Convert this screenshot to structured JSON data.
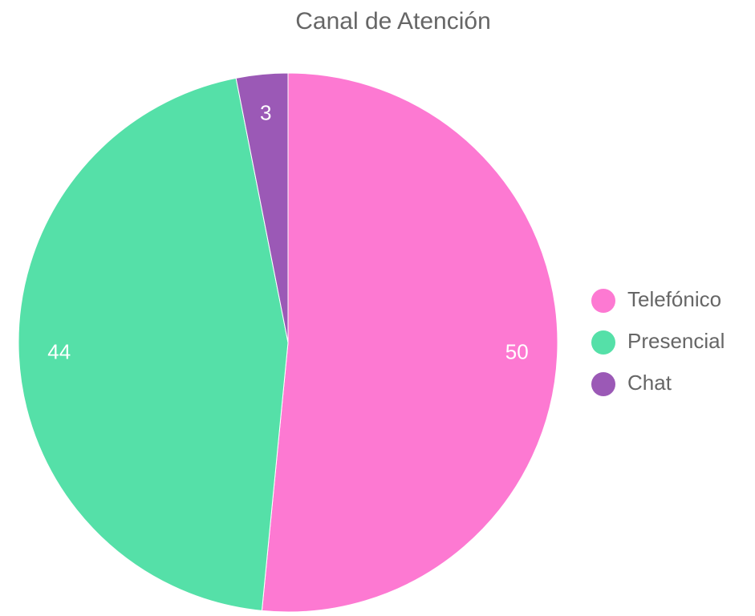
{
  "chart_data": {
    "type": "pie",
    "title": "Canal de Atención",
    "categories": [
      "Telefónico",
      "Presencial",
      "Chat"
    ],
    "values": [
      50,
      44,
      3
    ],
    "colors": [
      "#fd79d2",
      "#55e0a8",
      "#9b59b6"
    ],
    "legend": "right"
  }
}
